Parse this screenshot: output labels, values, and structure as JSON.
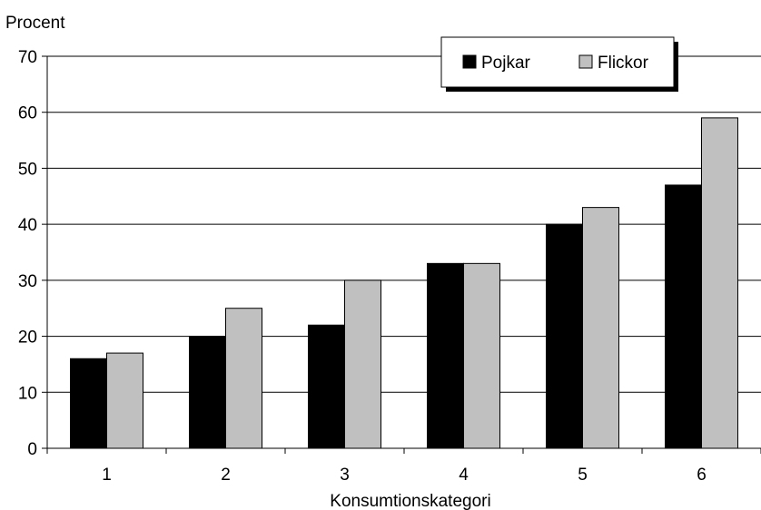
{
  "chart_data": {
    "type": "bar",
    "ylabel": "Procent",
    "xlabel": "Konsumtionskategori",
    "categories": [
      "1",
      "2",
      "3",
      "4",
      "5",
      "6"
    ],
    "ylim": [
      0,
      70
    ],
    "yticks": [
      0,
      10,
      20,
      30,
      40,
      50,
      60,
      70
    ],
    "grid": true,
    "legend_position": "top-right",
    "series": [
      {
        "name": "Pojkar",
        "color": "#000000",
        "values": [
          16,
          20,
          22,
          33,
          40,
          47
        ]
      },
      {
        "name": "Flickor",
        "color": "#c0c0c0",
        "values": [
          17,
          25,
          30,
          33,
          43,
          59
        ]
      }
    ]
  }
}
